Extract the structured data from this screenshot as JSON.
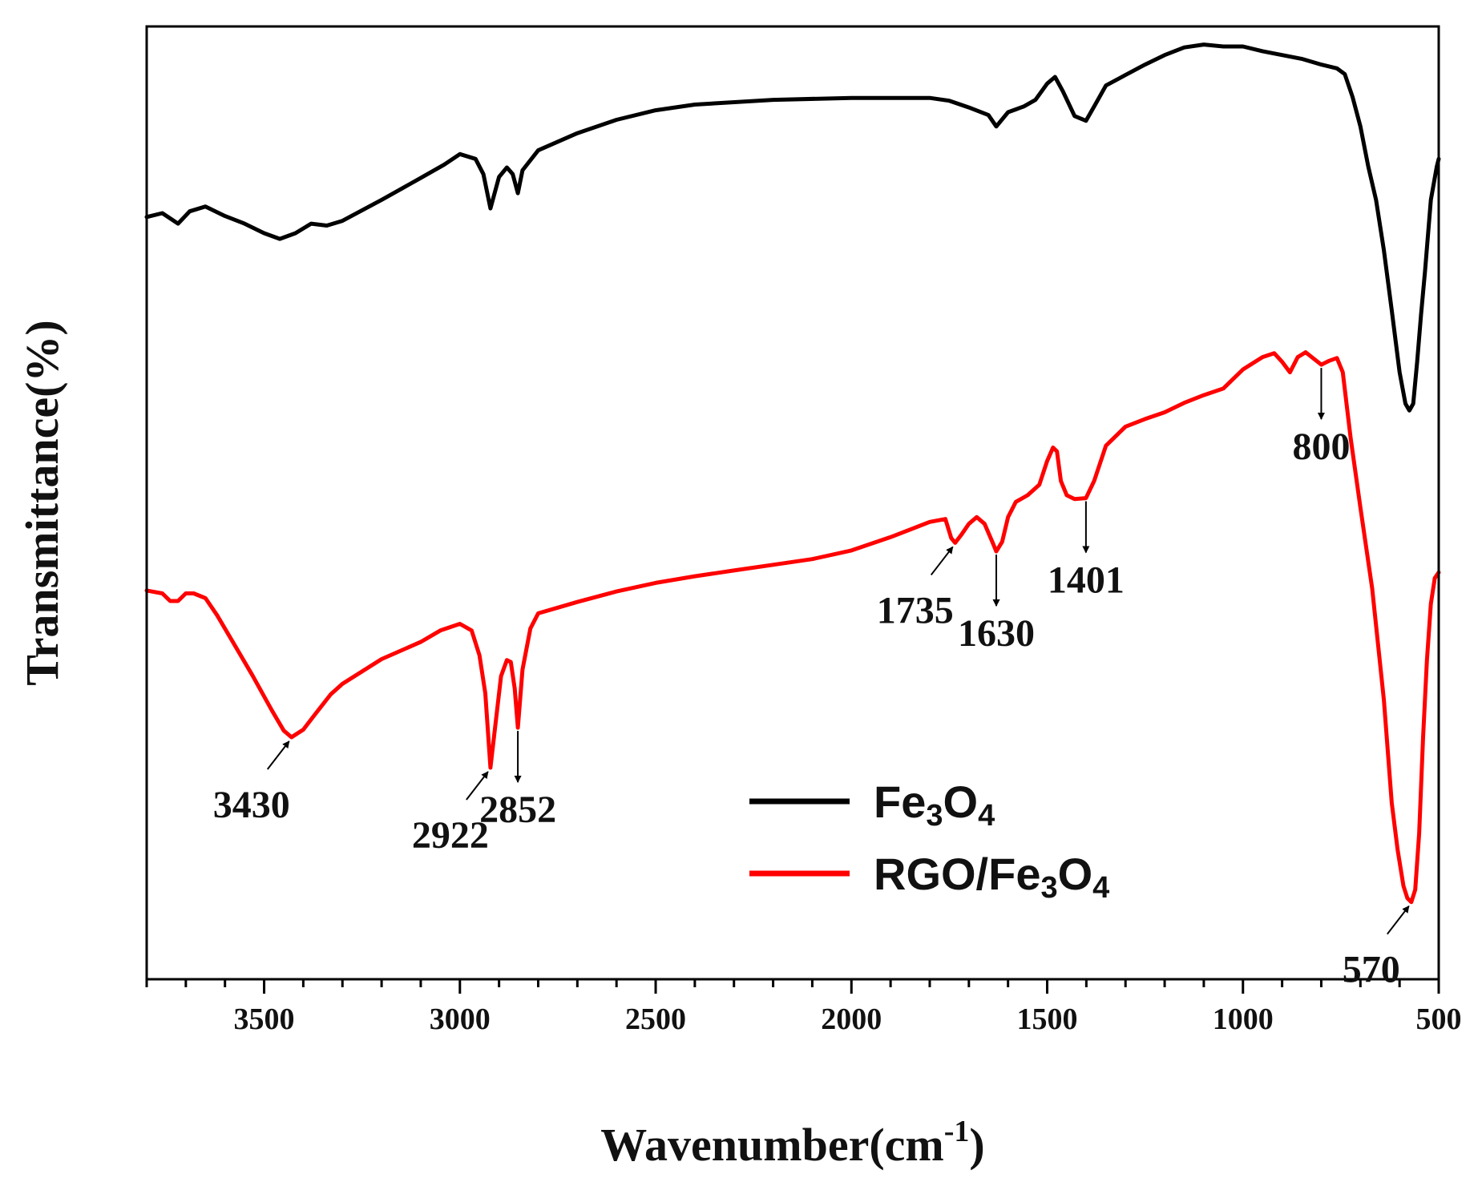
{
  "chart_data": {
    "type": "line",
    "title": "",
    "xlabel": "Wavenumber(cm",
    "xlabel_sup": "-1",
    "xlabel_end": ")",
    "ylabel": "Transmittance(%)",
    "xlim": [
      3800,
      500
    ],
    "x_reversed": true,
    "ylim": [
      0,
      100
    ],
    "y_ticks_labeled": false,
    "x_ticks": [
      3500,
      3000,
      2500,
      2000,
      1500,
      1000,
      500
    ],
    "x_tick_labels": [
      "3500",
      "3000",
      "2500",
      "2000",
      "1500",
      "1000",
      "500"
    ],
    "x_minor_step": 100,
    "legend_position": "center-right",
    "series": [
      {
        "name": "Fe3O4",
        "legend_parts": [
          [
            "Fe",
            false
          ],
          [
            "3",
            true
          ],
          [
            "O",
            false
          ],
          [
            "4",
            true
          ]
        ],
        "color": "#000000",
        "points": [
          [
            3800,
            80
          ],
          [
            3760,
            80.4
          ],
          [
            3720,
            79.3
          ],
          [
            3690,
            80.6
          ],
          [
            3650,
            81.1
          ],
          [
            3600,
            80.1
          ],
          [
            3550,
            79.3
          ],
          [
            3500,
            78.3
          ],
          [
            3460,
            77.7
          ],
          [
            3420,
            78.3
          ],
          [
            3380,
            79.3
          ],
          [
            3340,
            79.1
          ],
          [
            3300,
            79.6
          ],
          [
            3200,
            81.8
          ],
          [
            3100,
            84.1
          ],
          [
            3040,
            85.5
          ],
          [
            3000,
            86.6
          ],
          [
            2960,
            86.1
          ],
          [
            2940,
            84.5
          ],
          [
            2922,
            80.9
          ],
          [
            2900,
            84.2
          ],
          [
            2880,
            85.2
          ],
          [
            2865,
            84.5
          ],
          [
            2852,
            82.5
          ],
          [
            2840,
            84.9
          ],
          [
            2800,
            87.0
          ],
          [
            2700,
            88.8
          ],
          [
            2600,
            90.2
          ],
          [
            2500,
            91.2
          ],
          [
            2400,
            91.8
          ],
          [
            2200,
            92.3
          ],
          [
            2000,
            92.5
          ],
          [
            1800,
            92.5
          ],
          [
            1750,
            92.2
          ],
          [
            1700,
            91.5
          ],
          [
            1650,
            90.7
          ],
          [
            1630,
            89.5
          ],
          [
            1600,
            91.0
          ],
          [
            1560,
            91.6
          ],
          [
            1530,
            92.3
          ],
          [
            1500,
            94.0
          ],
          [
            1480,
            94.7
          ],
          [
            1460,
            93.2
          ],
          [
            1430,
            90.6
          ],
          [
            1401,
            90.1
          ],
          [
            1380,
            91.6
          ],
          [
            1350,
            93.8
          ],
          [
            1300,
            94.9
          ],
          [
            1250,
            96.0
          ],
          [
            1200,
            97.0
          ],
          [
            1150,
            97.8
          ],
          [
            1100,
            98.1
          ],
          [
            1050,
            97.9
          ],
          [
            1000,
            97.9
          ],
          [
            950,
            97.4
          ],
          [
            900,
            97.0
          ],
          [
            850,
            96.6
          ],
          [
            800,
            96.0
          ],
          [
            760,
            95.6
          ],
          [
            740,
            95.0
          ],
          [
            720,
            92.6
          ],
          [
            700,
            89.5
          ],
          [
            680,
            85.3
          ],
          [
            660,
            81.8
          ],
          [
            640,
            76.5
          ],
          [
            620,
            70.2
          ],
          [
            600,
            63.7
          ],
          [
            585,
            60.4
          ],
          [
            575,
            59.7
          ],
          [
            565,
            60.4
          ],
          [
            555,
            64.8
          ],
          [
            545,
            69.8
          ],
          [
            535,
            74.3
          ],
          [
            520,
            81.8
          ],
          [
            505,
            85.3
          ],
          [
            500,
            86.1
          ]
        ]
      },
      {
        "name": "RGO/Fe3O4",
        "legend_parts": [
          [
            "RGO/Fe",
            false
          ],
          [
            "3",
            true
          ],
          [
            "O",
            false
          ],
          [
            "4",
            true
          ]
        ],
        "color": "#ff0000",
        "points": [
          [
            3800,
            40.8
          ],
          [
            3760,
            40.5
          ],
          [
            3740,
            39.7
          ],
          [
            3720,
            39.7
          ],
          [
            3700,
            40.5
          ],
          [
            3680,
            40.5
          ],
          [
            3650,
            40.0
          ],
          [
            3620,
            38.2
          ],
          [
            3580,
            35.4
          ],
          [
            3530,
            31.9
          ],
          [
            3480,
            28.2
          ],
          [
            3450,
            26.1
          ],
          [
            3430,
            25.4
          ],
          [
            3400,
            26.2
          ],
          [
            3370,
            27.8
          ],
          [
            3330,
            29.9
          ],
          [
            3300,
            31.0
          ],
          [
            3200,
            33.6
          ],
          [
            3100,
            35.4
          ],
          [
            3050,
            36.6
          ],
          [
            3000,
            37.3
          ],
          [
            2970,
            36.6
          ],
          [
            2950,
            34.0
          ],
          [
            2935,
            30.0
          ],
          [
            2922,
            22.2
          ],
          [
            2910,
            26.5
          ],
          [
            2895,
            31.8
          ],
          [
            2880,
            33.5
          ],
          [
            2870,
            33.3
          ],
          [
            2860,
            30.5
          ],
          [
            2852,
            26.4
          ],
          [
            2840,
            32.5
          ],
          [
            2820,
            36.8
          ],
          [
            2800,
            38.4
          ],
          [
            2750,
            39.0
          ],
          [
            2700,
            39.6
          ],
          [
            2600,
            40.7
          ],
          [
            2500,
            41.6
          ],
          [
            2400,
            42.3
          ],
          [
            2300,
            42.9
          ],
          [
            2200,
            43.5
          ],
          [
            2100,
            44.1
          ],
          [
            2000,
            45.0
          ],
          [
            1900,
            46.4
          ],
          [
            1800,
            48.0
          ],
          [
            1760,
            48.3
          ],
          [
            1745,
            46.3
          ],
          [
            1735,
            45.8
          ],
          [
            1720,
            46.6
          ],
          [
            1700,
            47.8
          ],
          [
            1680,
            48.5
          ],
          [
            1660,
            47.8
          ],
          [
            1640,
            45.9
          ],
          [
            1630,
            44.9
          ],
          [
            1615,
            45.9
          ],
          [
            1600,
            48.5
          ],
          [
            1580,
            50.1
          ],
          [
            1550,
            50.8
          ],
          [
            1520,
            51.9
          ],
          [
            1500,
            54.4
          ],
          [
            1485,
            55.8
          ],
          [
            1475,
            55.4
          ],
          [
            1465,
            52.3
          ],
          [
            1450,
            50.8
          ],
          [
            1430,
            50.4
          ],
          [
            1401,
            50.5
          ],
          [
            1380,
            52.3
          ],
          [
            1350,
            56.0
          ],
          [
            1300,
            58.0
          ],
          [
            1250,
            58.8
          ],
          [
            1200,
            59.5
          ],
          [
            1150,
            60.5
          ],
          [
            1100,
            61.3
          ],
          [
            1050,
            62.0
          ],
          [
            1000,
            64.0
          ],
          [
            950,
            65.3
          ],
          [
            920,
            65.7
          ],
          [
            900,
            64.8
          ],
          [
            880,
            63.7
          ],
          [
            860,
            65.3
          ],
          [
            840,
            65.8
          ],
          [
            800,
            64.5
          ],
          [
            780,
            64.9
          ],
          [
            760,
            65.2
          ],
          [
            745,
            63.7
          ],
          [
            725,
            56.8
          ],
          [
            700,
            49.5
          ],
          [
            670,
            41.0
          ],
          [
            640,
            29.3
          ],
          [
            620,
            18.5
          ],
          [
            605,
            13.6
          ],
          [
            590,
            9.8
          ],
          [
            580,
            8.5
          ],
          [
            570,
            8.1
          ],
          [
            560,
            9.4
          ],
          [
            550,
            15.3
          ],
          [
            540,
            25.4
          ],
          [
            530,
            33.5
          ],
          [
            520,
            39.4
          ],
          [
            510,
            42.1
          ],
          [
            500,
            42.7
          ]
        ]
      }
    ],
    "annotations": [
      {
        "label": "3430",
        "x": 3430,
        "series": 1,
        "dir": "diag-left"
      },
      {
        "label": "2922",
        "x": 2922,
        "series": 1,
        "dir": "diag-left"
      },
      {
        "label": "2852",
        "x": 2852,
        "series": 1,
        "dir": "down"
      },
      {
        "label": "1735",
        "x": 1735,
        "series": 1,
        "dir": "diag-left"
      },
      {
        "label": "1630",
        "x": 1630,
        "series": 1,
        "dir": "down"
      },
      {
        "label": "1401",
        "x": 1401,
        "series": 1,
        "dir": "down"
      },
      {
        "label": "800",
        "x": 800,
        "series": 1,
        "dir": "down"
      },
      {
        "label": "570",
        "x": 570,
        "series": 1,
        "dir": "diag-left"
      }
    ]
  }
}
